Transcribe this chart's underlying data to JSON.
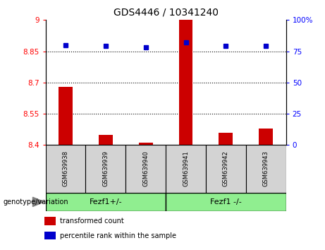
{
  "title": "GDS4446 / 10341240",
  "samples": [
    "GSM639938",
    "GSM639939",
    "GSM639940",
    "GSM639941",
    "GSM639942",
    "GSM639943"
  ],
  "group_labels": [
    "Fezf1+/-",
    "Fezf1 -/-"
  ],
  "transformed_count": [
    8.68,
    8.45,
    8.41,
    9.0,
    8.46,
    8.48
  ],
  "percentile_rank": [
    80,
    79,
    78,
    82,
    79,
    79
  ],
  "ylim_left": [
    8.4,
    9.0
  ],
  "ylim_right": [
    0,
    100
  ],
  "yticks_left": [
    8.4,
    8.55,
    8.7,
    8.85,
    9.0
  ],
  "ytick_labels_left": [
    "8.4",
    "8.55",
    "8.7",
    "8.85",
    "9"
  ],
  "yticks_right": [
    0,
    25,
    50,
    75,
    100
  ],
  "ytick_labels_right": [
    "0",
    "25",
    "50",
    "75",
    "100%"
  ],
  "hlines": [
    8.55,
    8.7,
    8.85
  ],
  "bar_color": "#cc0000",
  "marker_color": "#0000cc",
  "bar_width": 0.35,
  "group_bg_color": "#90ee90",
  "sample_bg_color": "#d3d3d3",
  "legend_items": [
    {
      "color": "#cc0000",
      "label": "transformed count"
    },
    {
      "color": "#0000cc",
      "label": "percentile rank within the sample"
    }
  ],
  "genotype_label": "genotype/variation"
}
